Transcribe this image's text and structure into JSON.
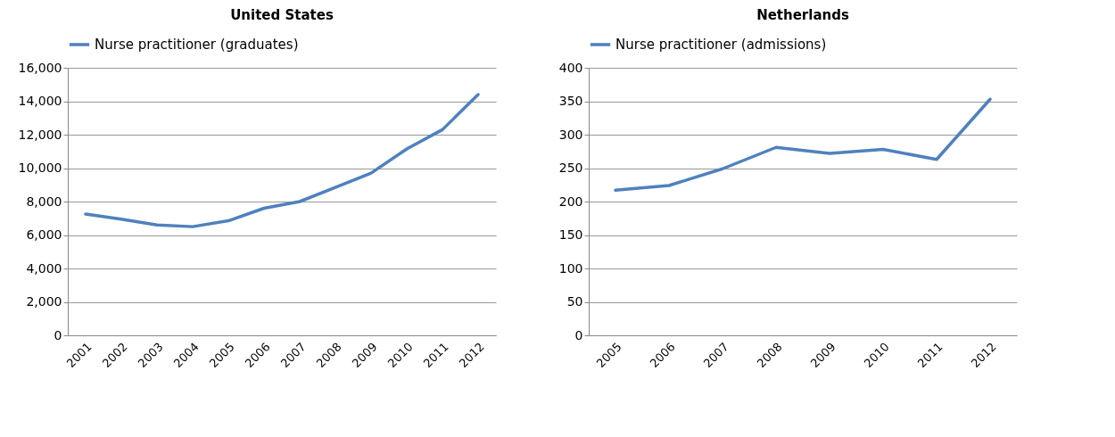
{
  "chart_data": [
    {
      "type": "line",
      "title": "United States",
      "categories": [
        "2001",
        "2002",
        "2003",
        "2004",
        "2005",
        "2006",
        "2007",
        "2008",
        "2009",
        "2010",
        "2011",
        "2012"
      ],
      "series": [
        {
          "name": "Nurse practitioner (graduates)",
          "color": "#4f81bd",
          "values": [
            7250,
            6950,
            6600,
            6500,
            6850,
            7600,
            8000,
            8850,
            9700,
            11150,
            12300,
            14400
          ]
        }
      ],
      "ylim": [
        0,
        16000
      ],
      "yticks": [
        {
          "value": 0,
          "label": "0"
        },
        {
          "value": 2000,
          "label": "2,000"
        },
        {
          "value": 4000,
          "label": "4,000"
        },
        {
          "value": 6000,
          "label": "6,000"
        },
        {
          "value": 8000,
          "label": "8,000"
        },
        {
          "value": 10000,
          "label": "10,000"
        },
        {
          "value": 12000,
          "label": "12,000"
        },
        {
          "value": 14000,
          "label": "14,000"
        },
        {
          "value": 16000,
          "label": "16,000"
        }
      ],
      "grid": "y",
      "legend": "top"
    },
    {
      "type": "line",
      "title": "Netherlands",
      "categories": [
        "2005",
        "2006",
        "2007",
        "2008",
        "2009",
        "2010",
        "2011",
        "2012"
      ],
      "series": [
        {
          "name": "Nurse practitioner (admissions)",
          "color": "#4f81bd",
          "values": [
            217,
            224,
            249,
            281,
            272,
            278,
            263,
            353
          ]
        }
      ],
      "ylim": [
        0,
        400
      ],
      "yticks": [
        0,
        50,
        100,
        150,
        200,
        250,
        300,
        350,
        400
      ],
      "grid": "y",
      "legend": "top"
    }
  ]
}
